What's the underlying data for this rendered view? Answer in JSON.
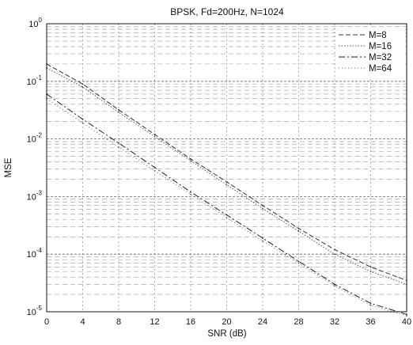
{
  "chart_data": {
    "type": "line",
    "title": "BPSK, Fd=200Hz, N=1024",
    "xlabel": "SNR (dB)",
    "ylabel": "MSE",
    "xlim": [
      0,
      40
    ],
    "ylim": [
      1e-05,
      1
    ],
    "yscale": "log",
    "grid": true,
    "legend_position": "top-right",
    "x_ticks": [
      "0",
      "4",
      "8",
      "12",
      "16",
      "20",
      "24",
      "28",
      "32",
      "36",
      "40"
    ],
    "y_tick_exponents": [
      "0",
      "-1",
      "-2",
      "-3",
      "-4",
      "-5"
    ],
    "y_tick_base": "10",
    "x": [
      0,
      4,
      8,
      12,
      16,
      20,
      24,
      28,
      32,
      36,
      40
    ],
    "series": [
      {
        "name": "M=8",
        "color": "#333333",
        "dash": "6,3",
        "values": [
          0.2,
          0.09,
          0.032,
          0.012,
          0.0045,
          0.0018,
          0.0007,
          0.00028,
          0.00012,
          6e-05,
          3.5e-05
        ]
      },
      {
        "name": "M=16",
        "color": "#555555",
        "dash": "1.5,2",
        "values": [
          0.17,
          0.08,
          0.029,
          0.011,
          0.0042,
          0.0016,
          0.00062,
          0.00025,
          0.0001,
          5e-05,
          3e-05
        ]
      },
      {
        "name": "M=32",
        "color": "#222222",
        "dash": "8,3,2,3",
        "values": [
          0.06,
          0.022,
          0.0085,
          0.0032,
          0.0012,
          0.00048,
          0.00019,
          7.5e-05,
          3e-05,
          1.4e-05,
          9e-06
        ]
      },
      {
        "name": "M=64",
        "color": "#666666",
        "dash": "1,3",
        "values": [
          0.05,
          0.019,
          0.0072,
          0.0028,
          0.0011,
          0.00043,
          0.00017,
          7e-05,
          2.8e-05,
          1.3e-05,
          8.5e-06
        ]
      }
    ]
  }
}
